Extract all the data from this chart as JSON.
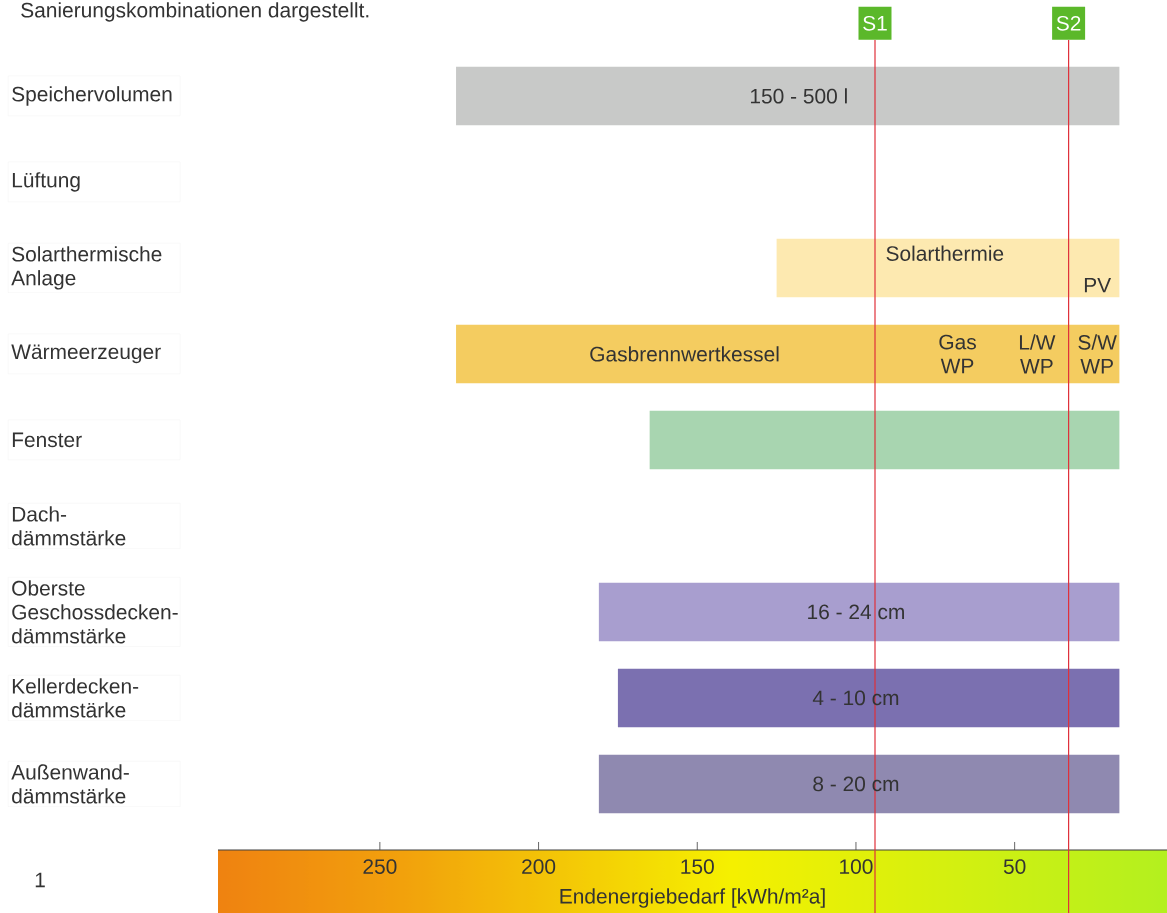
{
  "chart_data": {
    "type": "bar",
    "orientation": "horizontal",
    "title": "Sanierungskombinationen dargestellt.",
    "xlabel": "Endenergiebedarf [kWh/m²a]",
    "categories": [
      "Speichervolumen",
      "Lüftung",
      "Solarthermische Anlage",
      "Wärmeerzeuger",
      "Fenster",
      "Dach-dämmstärke",
      "Oberste Geschossdecken-dämmstärke",
      "Kellerdecken-dämmstärke",
      "Außenwand-dämmstärke"
    ],
    "base": [
      17,
      null,
      17,
      17,
      17,
      null,
      17,
      17,
      17
    ],
    "values": [
      209,
      null,
      108,
      209,
      148,
      null,
      164,
      158,
      164
    ],
    "colors": [
      "#c8c9c8",
      "#ffffff",
      "#fde9b0",
      "#f4cc60",
      "#a8d5b0",
      "#ffffff",
      "#a89ecf",
      "#7b70b0",
      "#8f89b0"
    ],
    "xlim": [
      301,
      2
    ],
    "xticks": [
      250,
      200,
      150,
      100,
      50
    ],
    "ref_lines": [
      {
        "axis": "x",
        "value": 94,
        "label": "S1",
        "color": "#e0303a"
      },
      {
        "axis": "x",
        "value": 33,
        "label": "S2",
        "color": "#e0303a"
      }
    ],
    "annotations": [
      "150 - 500 l",
      "Solarthermie",
      "PV",
      "Gasbrennwertkessel",
      "Gas WP",
      "L/W WP",
      "S/W WP",
      "16 - 24 cm",
      "4 - 10 cm",
      "8 - 20 cm",
      "1"
    ]
  }
}
